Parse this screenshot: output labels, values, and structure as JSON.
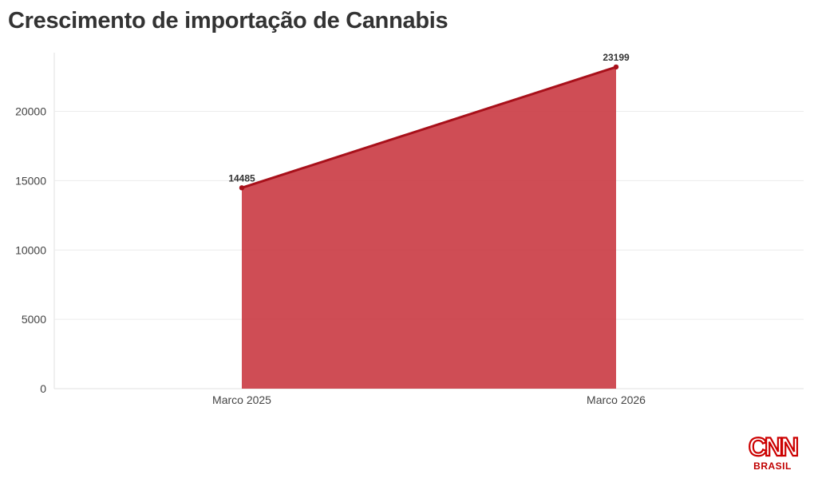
{
  "chart_data": {
    "type": "area",
    "title": "Crescimento de importação de Cannabis",
    "categories": [
      "Marco 2025",
      "Marco 2026"
    ],
    "series": [
      {
        "values": [
          14485,
          23199
        ],
        "color": "#c8343d",
        "line_color": "#a8101a"
      }
    ],
    "data_labels": [
      "14485",
      "23199"
    ],
    "y_ticks": [
      "0",
      "5000",
      "10000",
      "15000",
      "20000"
    ],
    "xlabel": "",
    "ylabel": "",
    "ylim": [
      0,
      24000
    ],
    "grid": true,
    "legend": "none"
  },
  "branding": {
    "logo_text": "CNN",
    "logo_subtext": "BRASIL",
    "logo_color": "#cc0000"
  }
}
